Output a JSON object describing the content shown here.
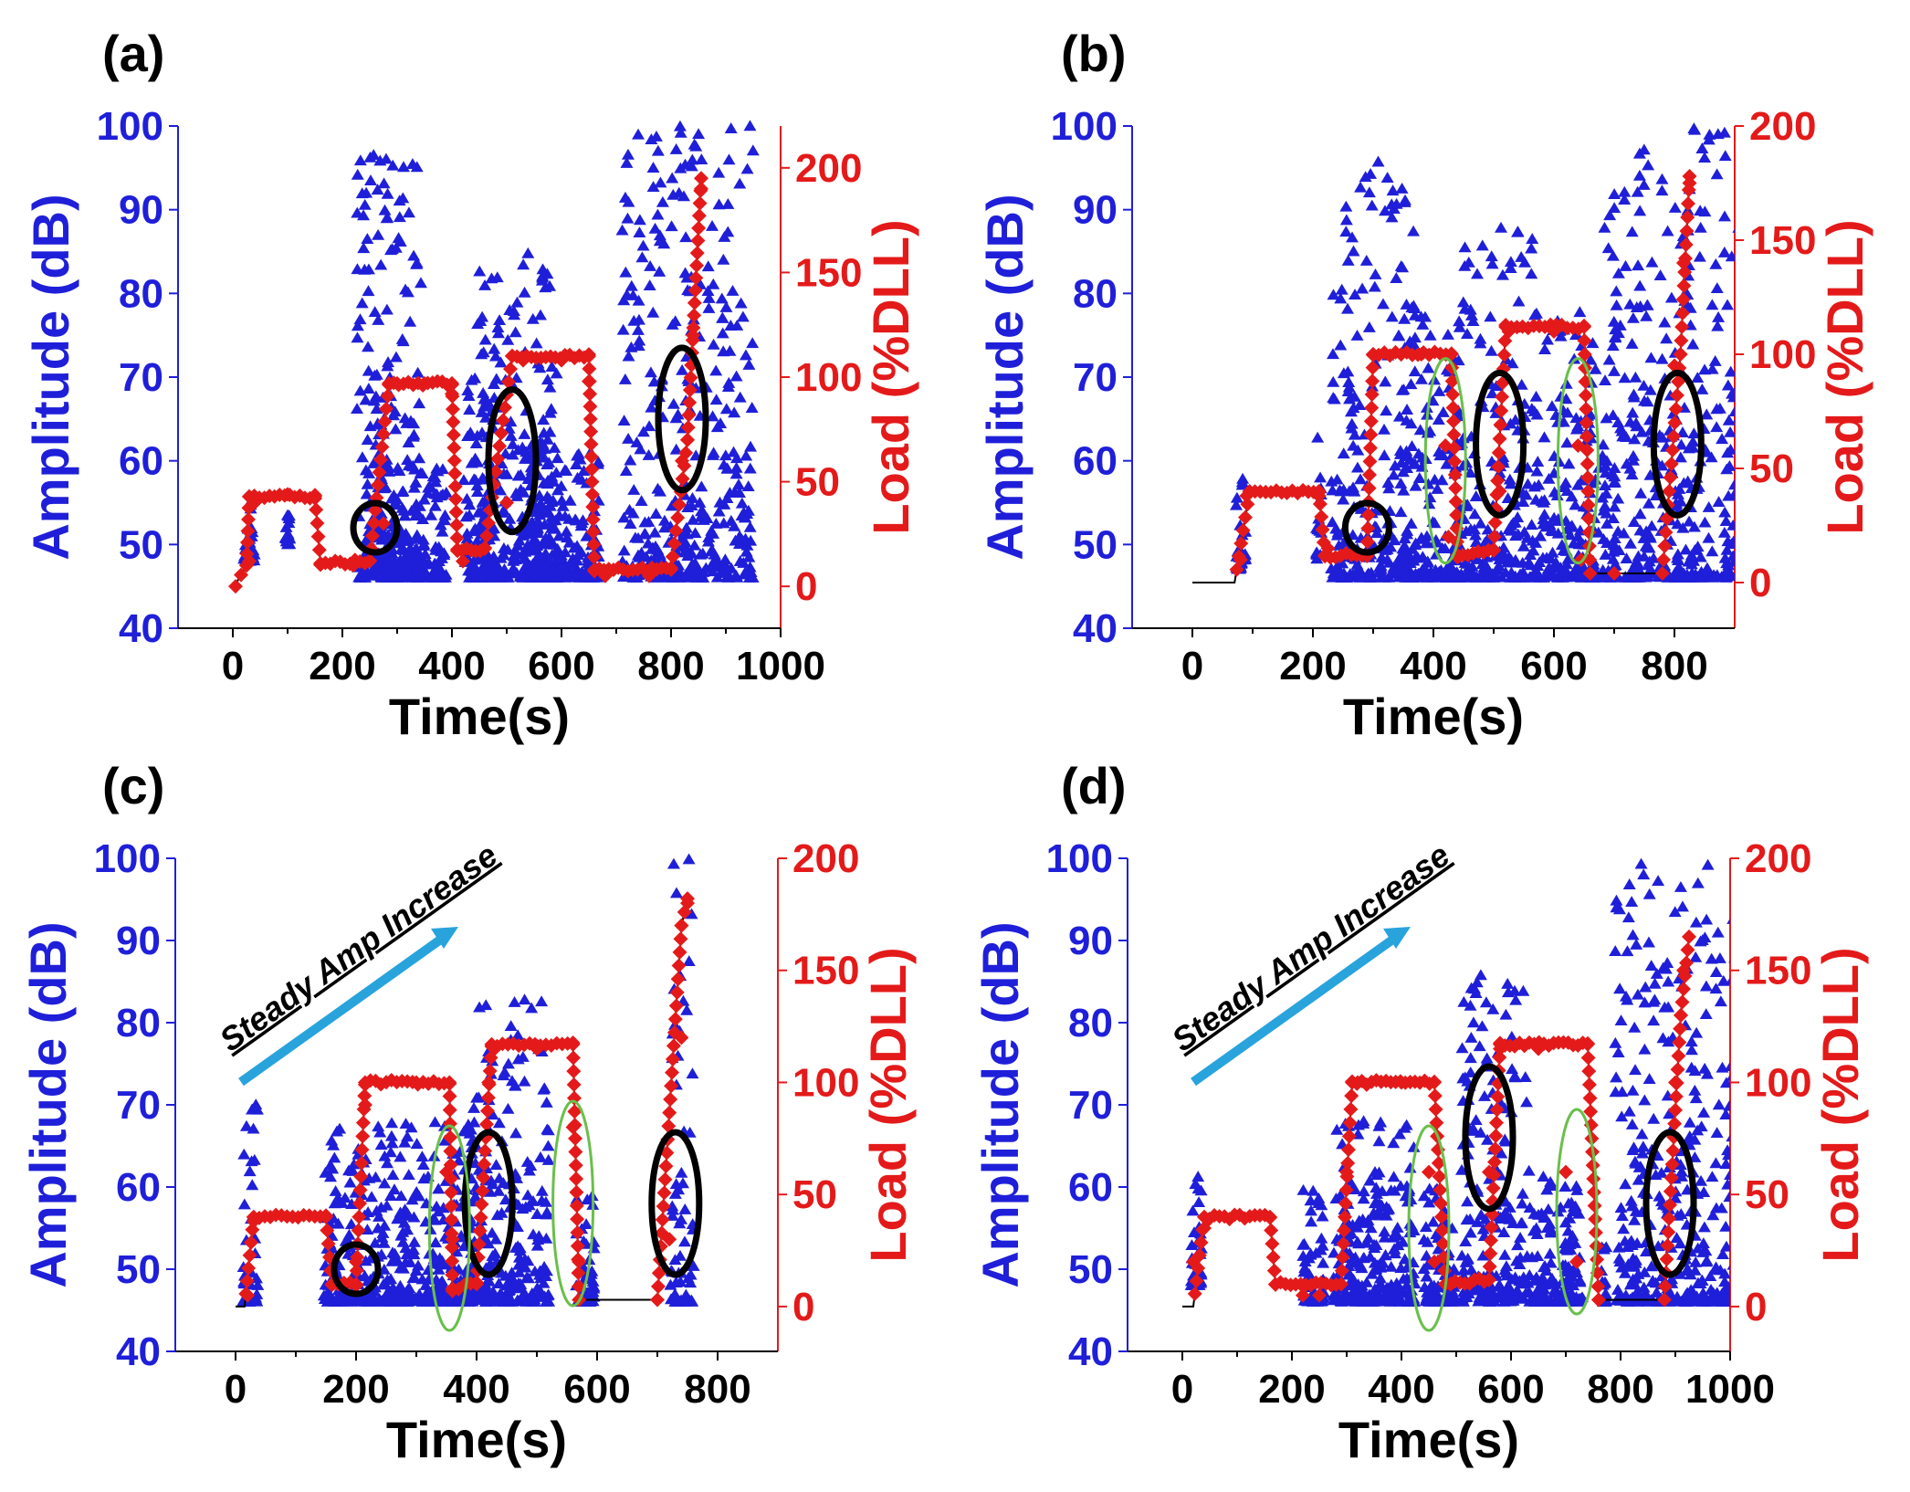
{
  "colors": {
    "amplitude": "#1f1fd9",
    "load": "#e41a1a",
    "axis_left": "#1f1fd9",
    "axis_right": "#e41a1a",
    "loadline": "#000000",
    "circle_black": "#000000",
    "ellipse_green": "#6abf4b",
    "arrow": "#29a3dc"
  },
  "chart_data": [
    {
      "panel": "(a)",
      "type": "scatter",
      "xlabel": "Time(s)",
      "ylabel_left": "Amplitude (dB)",
      "ylabel_right": "Load (%DLL)",
      "xlim": [
        -100,
        1000
      ],
      "xticks": [
        0,
        200,
        400,
        600,
        800,
        1000
      ],
      "ylim_left": [
        40,
        100
      ],
      "yticks_left": [
        40,
        50,
        60,
        70,
        80,
        90,
        100
      ],
      "ylim_right": [
        -20,
        220
      ],
      "yticks_right": [
        0,
        50,
        100,
        150,
        200
      ],
      "load_line": [
        [
          5,
          1
        ],
        [
          25,
          10
        ],
        [
          30,
          43
        ],
        [
          150,
          43
        ],
        [
          160,
          11
        ],
        [
          250,
          12
        ],
        [
          285,
          97
        ],
        [
          400,
          97
        ],
        [
          410,
          17
        ],
        [
          460,
          18
        ],
        [
          510,
          110
        ],
        [
          650,
          110
        ],
        [
          660,
          8
        ],
        [
          800,
          8
        ],
        [
          830,
          70
        ],
        [
          855,
          195
        ]
      ],
      "load_points": [
        [
          5,
          0
        ],
        [
          30,
          12
        ],
        [
          40,
          40
        ],
        [
          100,
          44
        ],
        [
          150,
          42
        ],
        [
          220,
          10
        ],
        [
          275,
          30
        ],
        [
          300,
          97
        ],
        [
          350,
          97
        ],
        [
          400,
          92
        ],
        [
          420,
          12
        ],
        [
          500,
          40
        ],
        [
          530,
          108
        ],
        [
          600,
          108
        ],
        [
          650,
          98
        ],
        [
          680,
          5
        ],
        [
          760,
          5
        ],
        [
          820,
          60
        ],
        [
          840,
          120
        ],
        [
          855,
          190
        ]
      ],
      "amp_clusters": [
        [
          20,
          55,
          40,
          52
        ],
        [
          280,
          45,
          30,
          98
        ],
        [
          300,
          70,
          120,
          60
        ],
        [
          520,
          85,
          150,
          60
        ],
        [
          850,
          100,
          30,
          80
        ]
      ],
      "amp_series": [
        [
          30,
          20,
          48,
          55
        ],
        [
          100,
          8,
          50,
          54
        ],
        [
          260,
          35,
          48,
          70
        ],
        [
          285,
          120,
          46,
          98
        ],
        [
          330,
          120,
          46,
          60
        ],
        [
          450,
          60,
          46,
          70
        ],
        [
          520,
          150,
          46,
          85
        ],
        [
          600,
          140,
          46,
          62
        ],
        [
          830,
          240,
          46,
          100
        ]
      ],
      "circles_black": [
        [
          260,
          52
        ],
        [
          510,
          60
        ],
        [
          820,
          65
        ]
      ],
      "ellipses_green": []
    },
    {
      "panel": "(b)",
      "type": "scatter",
      "xlabel": "Time(s)",
      "ylabel_left": "Amplitude (dB)",
      "ylabel_right": "Load (%DLL)",
      "xlim": [
        -100,
        900
      ],
      "xticks": [
        0,
        200,
        400,
        600,
        800
      ],
      "ylim_left": [
        40,
        100
      ],
      "yticks_left": [
        40,
        50,
        60,
        70,
        80,
        90,
        100
      ],
      "ylim_right": [
        -20,
        200
      ],
      "yticks_right": [
        0,
        50,
        100,
        150,
        200
      ],
      "load_line": [
        [
          0,
          0
        ],
        [
          70,
          0
        ],
        [
          95,
          40
        ],
        [
          210,
          40
        ],
        [
          220,
          12
        ],
        [
          290,
          12
        ],
        [
          300,
          100
        ],
        [
          430,
          100
        ],
        [
          440,
          12
        ],
        [
          500,
          14
        ],
        [
          520,
          112
        ],
        [
          650,
          112
        ],
        [
          660,
          4
        ],
        [
          780,
          4
        ],
        [
          810,
          100
        ],
        [
          825,
          178
        ]
      ],
      "load_points": [
        [
          80,
          10
        ],
        [
          90,
          38
        ],
        [
          210,
          38
        ],
        [
          225,
          15
        ],
        [
          300,
          100
        ],
        [
          380,
          100
        ],
        [
          420,
          60
        ],
        [
          425,
          20
        ],
        [
          510,
          40
        ],
        [
          525,
          110
        ],
        [
          600,
          110
        ],
        [
          640,
          60
        ],
        [
          645,
          10
        ],
        [
          700,
          4
        ],
        [
          800,
          95
        ],
        [
          815,
          140
        ],
        [
          825,
          175
        ]
      ],
      "amp_series": [
        [
          80,
          18,
          47,
          58
        ],
        [
          210,
          8,
          48,
          63
        ],
        [
          300,
          140,
          46,
          97
        ],
        [
          400,
          100,
          46,
          80
        ],
        [
          500,
          130,
          46,
          88
        ],
        [
          620,
          110,
          46,
          78
        ],
        [
          700,
          4,
          46,
          96
        ],
        [
          810,
          260,
          46,
          100
        ]
      ],
      "circles_black": [
        [
          290,
          52
        ],
        [
          510,
          62
        ],
        [
          805,
          62
        ]
      ],
      "ellipses_green": [
        [
          420,
          60
        ],
        [
          640,
          60
        ]
      ]
    },
    {
      "panel": "(c)",
      "type": "scatter",
      "xlabel": "Time(s)",
      "ylabel_left": "Amplitude (dB)",
      "ylabel_right": "Load (%DLL)",
      "annotation": "Steady Amp Increase",
      "xlim": [
        -100,
        900
      ],
      "xticks": [
        0,
        200,
        400,
        600,
        800
      ],
      "ylim_left": [
        40,
        100
      ],
      "yticks_left": [
        40,
        50,
        60,
        70,
        80,
        90,
        100
      ],
      "ylim_right": [
        -20,
        200
      ],
      "yticks_right": [
        0,
        50,
        100,
        150,
        200
      ],
      "load_line": [
        [
          0,
          0
        ],
        [
          15,
          0
        ],
        [
          30,
          40
        ],
        [
          150,
          40
        ],
        [
          160,
          10
        ],
        [
          200,
          10
        ],
        [
          215,
          100
        ],
        [
          355,
          100
        ],
        [
          360,
          8
        ],
        [
          400,
          10
        ],
        [
          425,
          117
        ],
        [
          560,
          117
        ],
        [
          570,
          3
        ],
        [
          700,
          3
        ],
        [
          740,
          170
        ],
        [
          750,
          182
        ]
      ],
      "load_points": [
        [
          20,
          5
        ],
        [
          30,
          38
        ],
        [
          200,
          20
        ],
        [
          215,
          90
        ],
        [
          300,
          100
        ],
        [
          350,
          60
        ],
        [
          360,
          30
        ],
        [
          420,
          100
        ],
        [
          430,
          115
        ],
        [
          500,
          115
        ],
        [
          560,
          80
        ],
        [
          570,
          20
        ],
        [
          720,
          30
        ],
        [
          740,
          120
        ],
        [
          750,
          180
        ]
      ],
      "amp_series": [
        [
          25,
          25,
          46,
          70
        ],
        [
          210,
          130,
          46,
          68
        ],
        [
          330,
          140,
          46,
          68
        ],
        [
          450,
          140,
          46,
          83
        ],
        [
          580,
          30,
          46,
          60
        ],
        [
          740,
          40,
          46,
          100
        ]
      ],
      "circles_black": [
        [
          200,
          50
        ],
        [
          420,
          58
        ],
        [
          730,
          58
        ]
      ],
      "ellipses_green": [
        [
          355,
          55
        ],
        [
          560,
          58
        ]
      ]
    },
    {
      "panel": "(d)",
      "type": "scatter",
      "xlabel": "Time(s)",
      "ylabel_left": "Amplitude (dB)",
      "ylabel_right": "Load (%DLL)",
      "annotation": "Steady Amp Increase",
      "xlim": [
        -100,
        1000
      ],
      "xticks": [
        0,
        200,
        400,
        600,
        800,
        1000
      ],
      "ylim_left": [
        40,
        100
      ],
      "yticks_left": [
        40,
        50,
        60,
        70,
        80,
        90,
        100
      ],
      "ylim_right": [
        -20,
        200
      ],
      "yticks_right": [
        0,
        50,
        100,
        150,
        200
      ],
      "load_line": [
        [
          0,
          0
        ],
        [
          20,
          0
        ],
        [
          40,
          40
        ],
        [
          160,
          40
        ],
        [
          170,
          10
        ],
        [
          290,
          10
        ],
        [
          310,
          100
        ],
        [
          460,
          100
        ],
        [
          480,
          10
        ],
        [
          560,
          12
        ],
        [
          580,
          117
        ],
        [
          740,
          117
        ],
        [
          760,
          3
        ],
        [
          880,
          3
        ],
        [
          910,
          130
        ],
        [
          925,
          165
        ]
      ],
      "load_points": [
        [
          20,
          20
        ],
        [
          40,
          35
        ],
        [
          220,
          5
        ],
        [
          250,
          5
        ],
        [
          300,
          60
        ],
        [
          320,
          100
        ],
        [
          400,
          100
        ],
        [
          450,
          60
        ],
        [
          460,
          20
        ],
        [
          490,
          10
        ],
        [
          560,
          60
        ],
        [
          580,
          115
        ],
        [
          650,
          115
        ],
        [
          700,
          60
        ],
        [
          720,
          20
        ],
        [
          760,
          3
        ],
        [
          900,
          100
        ],
        [
          915,
          150
        ]
      ],
      "amp_series": [
        [
          25,
          20,
          48,
          62
        ],
        [
          240,
          40,
          46,
          61
        ],
        [
          350,
          150,
          46,
          68
        ],
        [
          470,
          60,
          46,
          60
        ],
        [
          570,
          120,
          46,
          86
        ],
        [
          680,
          100,
          46,
          62
        ],
        [
          770,
          10,
          46,
          55
        ],
        [
          910,
          240,
          46,
          100
        ]
      ],
      "circles_black": [
        [
          560,
          66
        ],
        [
          890,
          58
        ]
      ],
      "ellipses_green": [
        [
          450,
          55
        ],
        [
          720,
          57
        ]
      ]
    }
  ]
}
